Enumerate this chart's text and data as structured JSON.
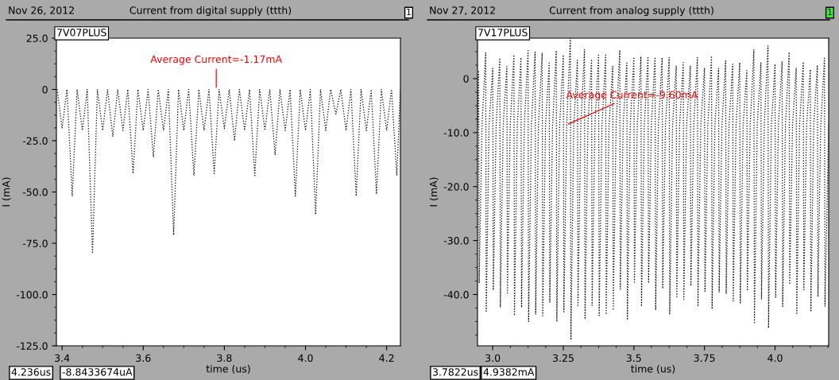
{
  "chart_data": [
    {
      "type": "line",
      "title": "Current from digital supply (ttth)",
      "xlabel": "time (us)",
      "ylabel": "I (mA)",
      "line_style": "dotted",
      "marker": "none",
      "grid": false,
      "xlim": [
        3.386,
        4.234
      ],
      "xticks": [
        {
          "value": 3.4,
          "label": "3.4"
        },
        {
          "value": 3.6,
          "label": "3.6"
        },
        {
          "value": 3.8,
          "label": "3.8"
        },
        {
          "value": 4.0,
          "label": "4.0"
        },
        {
          "value": 4.2,
          "label": "4.2"
        }
      ],
      "ylim": [
        -125,
        25
      ],
      "yticks": [
        {
          "value": -125,
          "label": "-125.0"
        },
        {
          "value": -100,
          "label": "-100.0"
        },
        {
          "value": -75,
          "label": "-75.0"
        },
        {
          "value": -50,
          "label": "-50.0"
        },
        {
          "value": -25,
          "label": "-25.0"
        },
        0,
        {
          "value": 25,
          "label": "25.0"
        }
      ],
      "annotations": [
        "Nov 26, 2012",
        "1",
        "4.236us",
        "-8.8433674uA",
        {
          "text": "Average Current=-1.17mA",
          "x": 3.78,
          "y": 0
        }
      ],
      "series": [
        {
          "name": "7V07PLUS",
          "color": "#000000",
          "x": [
            3.388,
            3.4,
            3.412,
            3.425,
            3.437,
            3.45,
            3.462,
            3.475,
            3.487,
            3.5,
            3.512,
            3.525,
            3.537,
            3.55,
            3.562,
            3.575,
            3.587,
            3.6,
            3.612,
            3.625,
            3.637,
            3.65,
            3.662,
            3.675,
            3.687,
            3.7,
            3.712,
            3.725,
            3.737,
            3.75,
            3.762,
            3.775,
            3.787,
            3.8,
            3.812,
            3.825,
            3.837,
            3.85,
            3.862,
            3.875,
            3.887,
            3.9,
            3.912,
            3.925,
            3.937,
            3.95,
            3.962,
            3.975,
            3.987,
            4.0,
            4.012,
            4.025,
            4.037,
            4.05,
            4.062,
            4.075,
            4.087,
            4.1,
            4.112,
            4.125,
            4.137,
            4.15,
            4.162,
            4.175,
            4.187,
            4.2,
            4.212,
            4.225,
            4.234
          ],
          "values": [
            0,
            -19,
            0,
            -52,
            0,
            -20,
            0,
            -80,
            0,
            -20,
            0,
            -23,
            0,
            -20,
            0,
            -41,
            0,
            -20,
            0,
            -33,
            0,
            -20,
            0,
            -71,
            0,
            -20,
            0,
            -42,
            0,
            -20,
            0,
            -41,
            0,
            -19,
            0,
            -25,
            0,
            -20,
            0,
            -42,
            0,
            -20,
            0,
            -32,
            0,
            -20,
            0,
            -52,
            0,
            -20,
            0,
            -61,
            0,
            -20,
            0,
            -12,
            0,
            -20,
            0,
            -52,
            0,
            -20,
            0,
            -51,
            0,
            -20,
            0,
            -42,
            0
          ]
        }
      ]
    },
    {
      "type": "line",
      "title": "Current from analog supply (ttth)",
      "xlabel": "time (us)",
      "ylabel": "I (mA)",
      "line_style": "dotted",
      "marker": "none",
      "grid": false,
      "xlim": [
        2.946,
        4.19
      ],
      "xticks": [
        {
          "value": 3.0,
          "label": "3.0"
        },
        3.25,
        3.5,
        3.75,
        {
          "value": 4.0,
          "label": "4.0"
        }
      ],
      "ylim": [
        -49.5,
        7.5
      ],
      "yticks": [
        {
          "value": -40,
          "label": "-40.0"
        },
        {
          "value": -30,
          "label": "-30.0"
        },
        {
          "value": -20,
          "label": "-20.0"
        },
        {
          "value": -10,
          "label": "-10.0"
        },
        0
      ],
      "annotations": [
        "Nov 27, 2012",
        "1",
        "3.7822us",
        "4.9382mA",
        {
          "text": "Average Current=-9.60mA",
          "x": 3.26,
          "y": -8.6
        }
      ],
      "series": [
        {
          "name": "7V17PLUS",
          "color": "#000000",
          "x": [
            2.946,
            2.95,
            2.952,
            2.962,
            2.975,
            2.977,
            2.987,
            3.0,
            3.002,
            3.012,
            3.025,
            3.027,
            3.037,
            3.05,
            3.052,
            3.062,
            3.075,
            3.077,
            3.087,
            3.1,
            3.102,
            3.112,
            3.125,
            3.127,
            3.137,
            3.15,
            3.152,
            3.162,
            3.175,
            3.177,
            3.187,
            3.2,
            3.202,
            3.212,
            3.225,
            3.227,
            3.237,
            3.25,
            3.252,
            3.262,
            3.275,
            3.277,
            3.287,
            3.3,
            3.302,
            3.312,
            3.325,
            3.327,
            3.337,
            3.35,
            3.352,
            3.362,
            3.375,
            3.377,
            3.387,
            3.4,
            3.402,
            3.412,
            3.425,
            3.427,
            3.437,
            3.45,
            3.452,
            3.462,
            3.475,
            3.477,
            3.487,
            3.5,
            3.502,
            3.512,
            3.525,
            3.527,
            3.537,
            3.55,
            3.552,
            3.562,
            3.575,
            3.577,
            3.587,
            3.6,
            3.602,
            3.612,
            3.625,
            3.627,
            3.637,
            3.65,
            3.652,
            3.662,
            3.675,
            3.677,
            3.687,
            3.7,
            3.702,
            3.712,
            3.725,
            3.727,
            3.737,
            3.75,
            3.752,
            3.762,
            3.775,
            3.777,
            3.787,
            3.8,
            3.802,
            3.812,
            3.825,
            3.827,
            3.837,
            3.85,
            3.852,
            3.862,
            3.875,
            3.877,
            3.887,
            3.9,
            3.902,
            3.912,
            3.925,
            3.927,
            3.937,
            3.95,
            3.952,
            3.962,
            3.975,
            3.977,
            3.987,
            4.0,
            4.002,
            4.012,
            4.025,
            4.027,
            4.037,
            4.05,
            4.052,
            4.062,
            4.075,
            4.077,
            4.087,
            4.1,
            4.102,
            4.112,
            4.125,
            4.127,
            4.137,
            4.15,
            4.152,
            4.162,
            4.175,
            4.177,
            4.19
          ],
          "values": [
            -8.6,
            1.5,
            -37.9,
            -8.6,
            4.8,
            -43.3,
            -8.6,
            1.9,
            -39.2,
            -8.6,
            3.8,
            -42.4,
            -8.6,
            2.3,
            -39.7,
            -8.6,
            4.4,
            -43.9,
            -8.6,
            3.9,
            -42.4,
            -8.6,
            5.2,
            -45,
            -8.6,
            4.9,
            -43.7,
            -8.6,
            4.8,
            -43.9,
            -8.6,
            2.9,
            -41.4,
            -8.6,
            5.2,
            -45,
            -8.6,
            4.4,
            -43.2,
            -8.6,
            7.5,
            -48.4,
            -8.6,
            3.4,
            -42,
            -8.6,
            5.4,
            -44.6,
            -8.6,
            3.6,
            -42,
            -8.6,
            4.6,
            -43.9,
            -8.6,
            4.4,
            -43.7,
            -8.6,
            2.3,
            -42.9,
            -8.6,
            5.3,
            -39,
            -8.6,
            2.9,
            -44.7,
            -8.6,
            4,
            -37.7,
            -8.6,
            4.1,
            -42.2,
            -8.6,
            4.1,
            -37.9,
            -8.6,
            4,
            -42.9,
            -8.6,
            3.9,
            -38.9,
            -8.6,
            3.9,
            -43.7,
            -8.6,
            2.4,
            -40.4,
            -8.6,
            3,
            -40.9,
            -8.6,
            2.4,
            -38.4,
            -8.6,
            3.9,
            -42.2,
            -8.6,
            2,
            -39.4,
            -8.6,
            4.2,
            -42.7,
            -8.6,
            1.9,
            -39.6,
            -8.6,
            3.3,
            -39.9,
            -8.6,
            2.7,
            -41.2,
            -8.6,
            3,
            -41.7,
            -8.6,
            1.5,
            -39.3,
            -8.6,
            5.4,
            -45.2,
            -8.6,
            3,
            -40.9,
            -8.6,
            6.1,
            -46.2,
            -8.6,
            2.7,
            -40.5,
            -8.6,
            3.2,
            -42.2,
            -8.6,
            4.9,
            -38.1,
            -8.6,
            2,
            -43.7,
            -8.6,
            3.1,
            -39.1,
            -8.6,
            1.7,
            -43.2,
            -8.6,
            2.5,
            -40.4,
            -8.6,
            3.8,
            -42.2,
            -8.6
          ]
        }
      ]
    }
  ]
}
